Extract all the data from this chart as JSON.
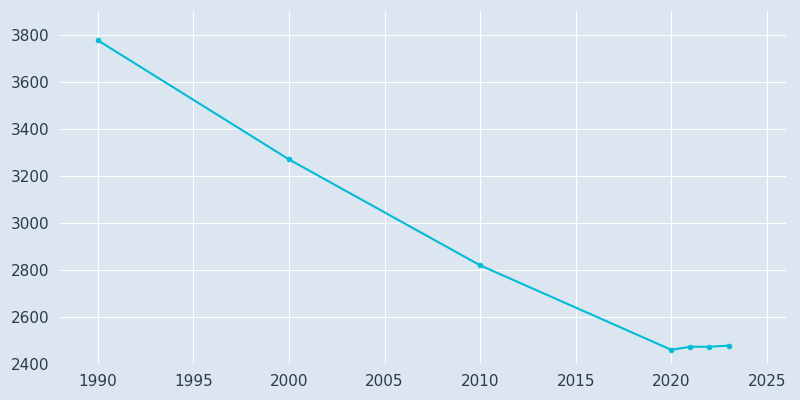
{
  "years": [
    1990,
    2000,
    2010,
    2020,
    2021,
    2022,
    2023
  ],
  "population": [
    3776,
    3270,
    2820,
    2461,
    2474,
    2474,
    2479
  ],
  "line_color": "#00BCD4",
  "marker_style": "o",
  "marker_size": 3.5,
  "background_color": "#dce6f0",
  "grid_color": "#ffffff",
  "xlim": [
    1988,
    2026
  ],
  "ylim": [
    2400,
    3900
  ],
  "xticks": [
    1990,
    1995,
    2000,
    2005,
    2010,
    2015,
    2020,
    2025
  ],
  "yticks": [
    2400,
    2600,
    2800,
    3000,
    3200,
    3400,
    3600,
    3800
  ],
  "tick_color": "#2d3a4a",
  "tick_fontsize": 11
}
